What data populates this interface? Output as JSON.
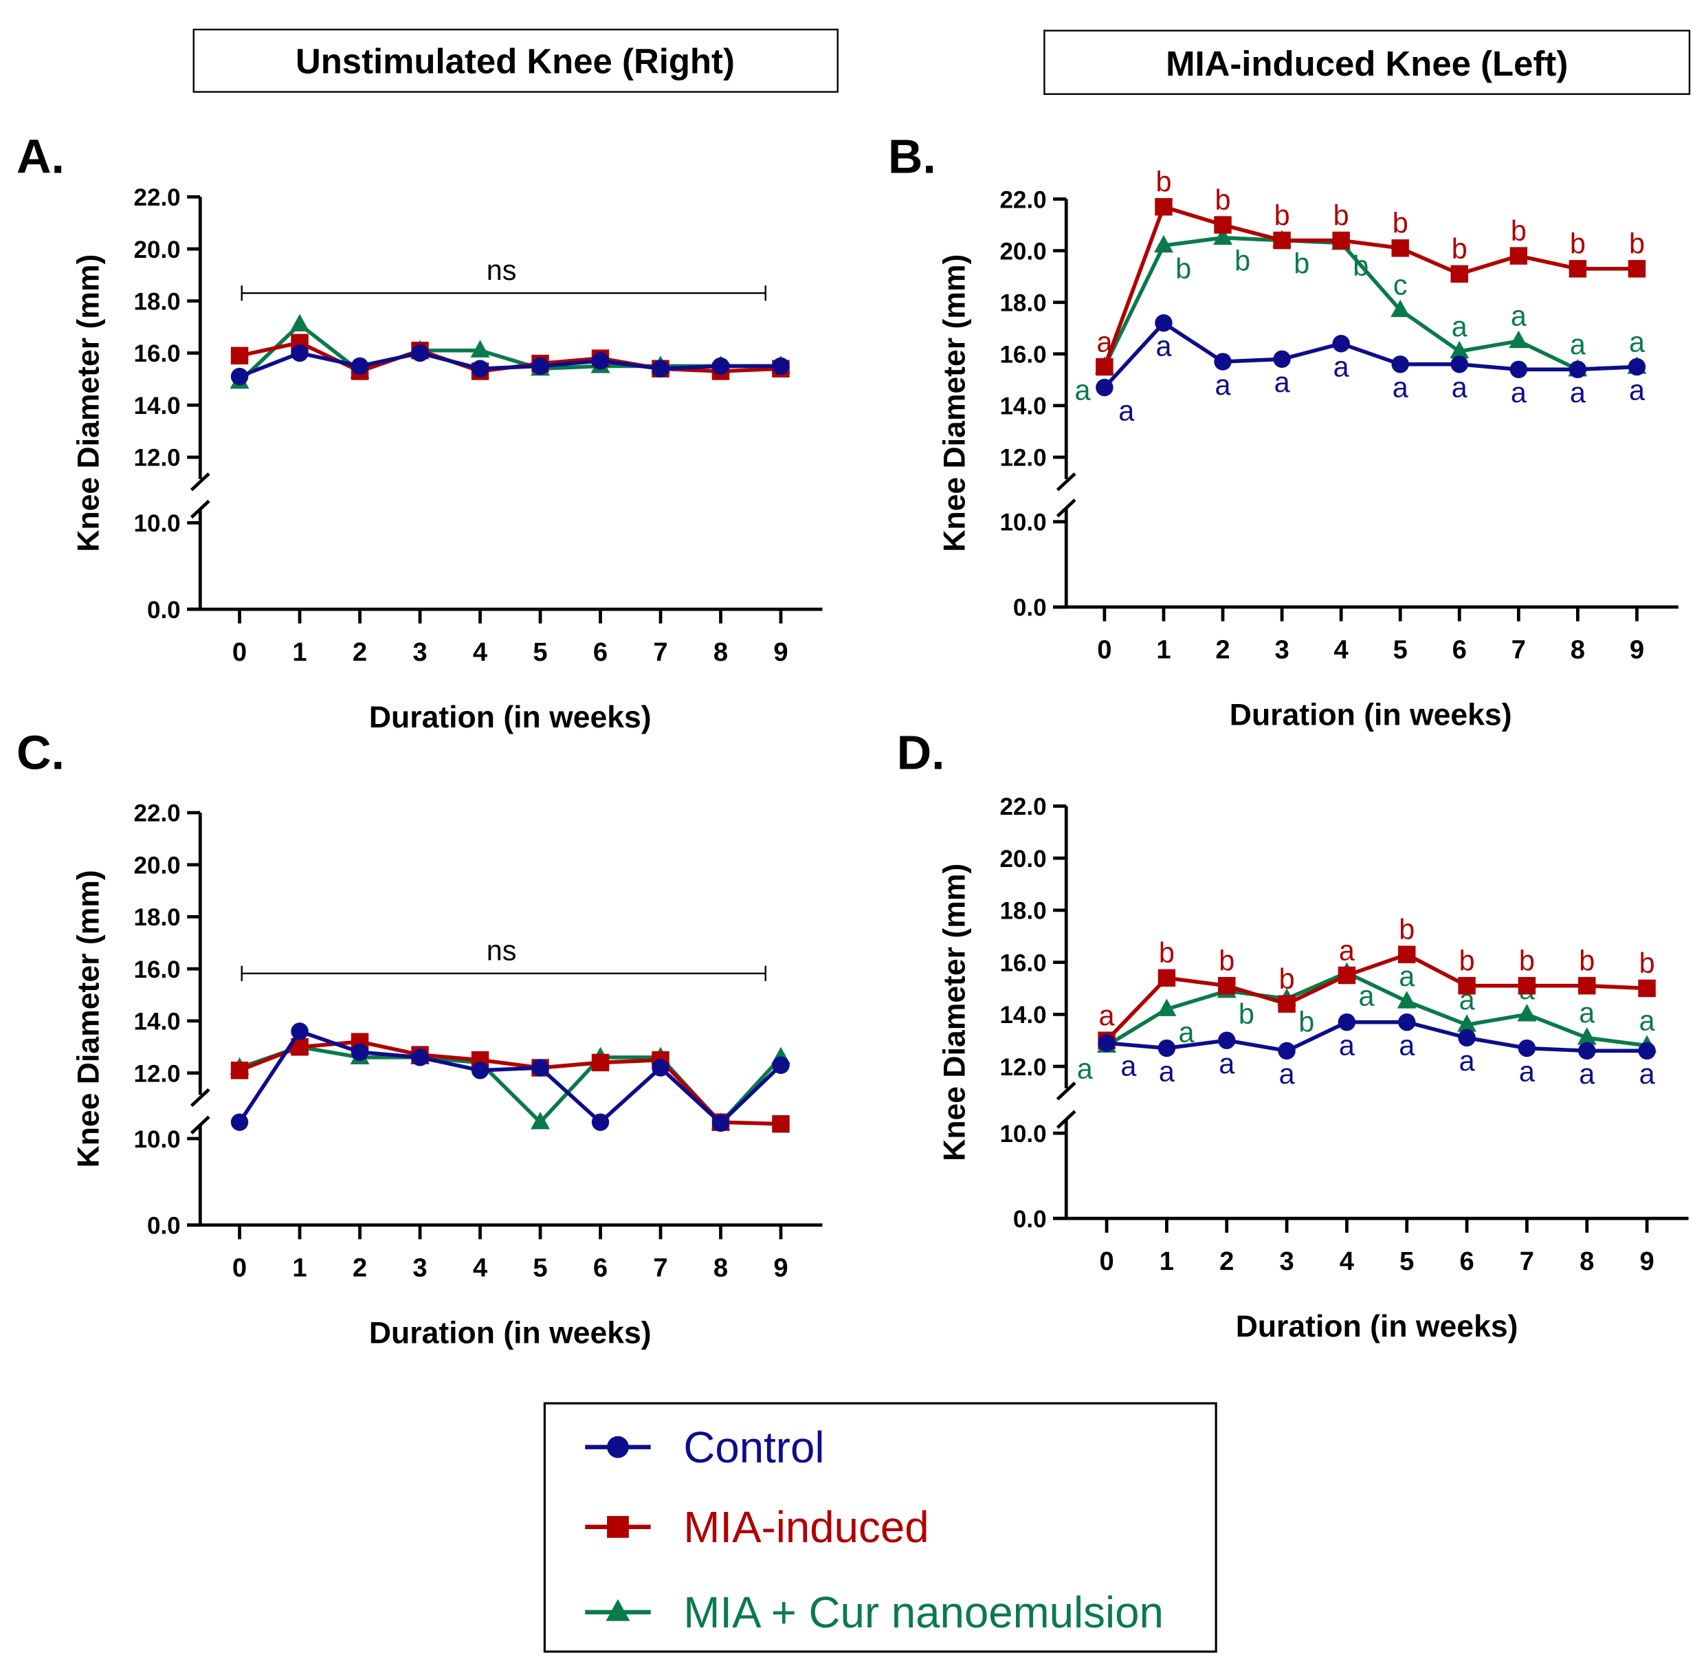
{
  "colors": {
    "control": "#0d0d8c",
    "mia": "#b00000",
    "cur": "#0a7a4a",
    "axis": "#000000"
  },
  "headers": {
    "left": "Unstimulated Knee (Right)",
    "right": "MIA-induced Knee (Left)"
  },
  "legend": {
    "items": [
      {
        "label": "Control",
        "marker": "circle",
        "color": "#0d0d8c"
      },
      {
        "label": "MIA-induced",
        "marker": "square",
        "color": "#b00000"
      },
      {
        "label": "MIA + Cur nanoemulsion",
        "marker": "triangle",
        "color": "#0a7a4a"
      }
    ]
  },
  "chart_data": [
    {
      "panel": "A.",
      "type": "line",
      "xlabel": "Duration (in weeks)",
      "ylabel": "Knee Diameter (mm)",
      "x": [
        0,
        1,
        2,
        3,
        4,
        5,
        6,
        7,
        8,
        9
      ],
      "y_ticks": [
        "0.0",
        "10.0",
        "12.0",
        "14.0",
        "16.0",
        "18.0",
        "20.0",
        "22.0"
      ],
      "y_break": [
        10,
        12
      ],
      "ylim": [
        0,
        22
      ],
      "annotation": "ns",
      "series": [
        {
          "name": "Control",
          "values": [
            15.1,
            16.0,
            15.5,
            16.0,
            15.4,
            15.5,
            15.7,
            15.4,
            15.5,
            15.5
          ]
        },
        {
          "name": "MIA-induced",
          "values": [
            15.9,
            16.4,
            15.3,
            16.1,
            15.3,
            15.6,
            15.8,
            15.4,
            15.3,
            15.4
          ]
        },
        {
          "name": "MIA + Cur nanoemulsion",
          "values": [
            14.9,
            17.1,
            15.3,
            16.1,
            16.1,
            15.4,
            15.5,
            15.5,
            15.5,
            15.5
          ]
        }
      ]
    },
    {
      "panel": "B.",
      "type": "line",
      "xlabel": "Duration (in weeks)",
      "ylabel": "Knee Diameter (mm)",
      "x": [
        0,
        1,
        2,
        3,
        4,
        5,
        6,
        7,
        8,
        9
      ],
      "y_ticks": [
        "0.0",
        "10.0",
        "12.0",
        "14.0",
        "16.0",
        "18.0",
        "20.0",
        "22.0"
      ],
      "y_break": [
        10,
        12
      ],
      "ylim": [
        0,
        22
      ],
      "series": [
        {
          "name": "Control",
          "values": [
            14.7,
            17.2,
            15.7,
            15.8,
            16.4,
            15.6,
            15.6,
            15.4,
            15.4,
            15.5
          ],
          "letters": [
            "a",
            "a",
            "a",
            "a",
            "a",
            "a",
            "a",
            "a",
            "a",
            "a"
          ]
        },
        {
          "name": "MIA-induced",
          "values": [
            15.5,
            21.7,
            21.0,
            20.4,
            20.4,
            20.1,
            19.1,
            19.8,
            19.3,
            19.3
          ],
          "letters": [
            "a",
            "b",
            "b",
            "b",
            "b",
            "b",
            "b",
            "b",
            "b",
            "b"
          ]
        },
        {
          "name": "MIA + Cur nanoemulsion",
          "values": [
            15.5,
            20.2,
            20.5,
            20.4,
            20.3,
            17.7,
            16.1,
            16.5,
            15.4,
            15.5
          ],
          "letters": [
            "a",
            "b",
            "b",
            "b",
            "b",
            "c",
            "a",
            "a",
            "a",
            "a"
          ]
        }
      ]
    },
    {
      "panel": "C.",
      "type": "line",
      "xlabel": "Duration (in weeks)",
      "ylabel": "Knee Diameter (mm)",
      "x": [
        0,
        1,
        2,
        3,
        4,
        5,
        6,
        7,
        8,
        9
      ],
      "y_ticks": [
        "0.0",
        "10.0",
        "12.0",
        "14.0",
        "16.0",
        "18.0",
        "20.0",
        "22.0"
      ],
      "y_break": [
        10,
        12
      ],
      "ylim": [
        0,
        22
      ],
      "annotation": "ns",
      "series": [
        {
          "name": "Control",
          "values": [
            11.9,
            13.6,
            12.8,
            12.6,
            12.1,
            12.2,
            11.9,
            12.2,
            11.8,
            12.3
          ]
        },
        {
          "name": "MIA-induced",
          "values": [
            12.1,
            13.0,
            13.2,
            12.7,
            12.5,
            12.2,
            12.4,
            12.5,
            11.9,
            11.7
          ]
        },
        {
          "name": "MIA + Cur nanoemulsion",
          "values": [
            12.2,
            13.0,
            12.6,
            12.6,
            12.4,
            11.9,
            12.6,
            12.6,
            11.8,
            12.6
          ]
        }
      ]
    },
    {
      "panel": "D.",
      "type": "line",
      "xlabel": "Duration (in weeks)",
      "ylabel": "Knee Diameter (mm)",
      "x": [
        0,
        1,
        2,
        3,
        4,
        5,
        6,
        7,
        8,
        9
      ],
      "y_ticks": [
        "0.0",
        "10.0",
        "12.0",
        "14.0",
        "16.0",
        "18.0",
        "20.0",
        "22.0"
      ],
      "y_break": [
        10,
        12
      ],
      "ylim": [
        0,
        22
      ],
      "series": [
        {
          "name": "Control",
          "values": [
            12.9,
            12.7,
            13.0,
            12.6,
            13.7,
            13.7,
            13.1,
            12.7,
            12.6,
            12.6
          ],
          "letters": [
            "a",
            "a",
            "a",
            "a",
            "a",
            "a",
            "a",
            "a",
            "a",
            "a"
          ]
        },
        {
          "name": "MIA-induced",
          "values": [
            13.0,
            15.4,
            15.1,
            14.4,
            15.5,
            16.3,
            15.1,
            15.1,
            15.1,
            15.0
          ],
          "letters": [
            "a",
            "b",
            "b",
            "b",
            "a",
            "b",
            "b",
            "b",
            "b",
            "b"
          ]
        },
        {
          "name": "MIA + Cur nanoemulsion",
          "values": [
            12.8,
            14.2,
            14.9,
            14.6,
            15.6,
            14.5,
            13.6,
            14.0,
            13.1,
            12.8
          ],
          "letters": [
            "a",
            "a",
            "b",
            "b",
            "a",
            "a",
            "a",
            "a",
            "a",
            "a"
          ]
        }
      ]
    }
  ]
}
